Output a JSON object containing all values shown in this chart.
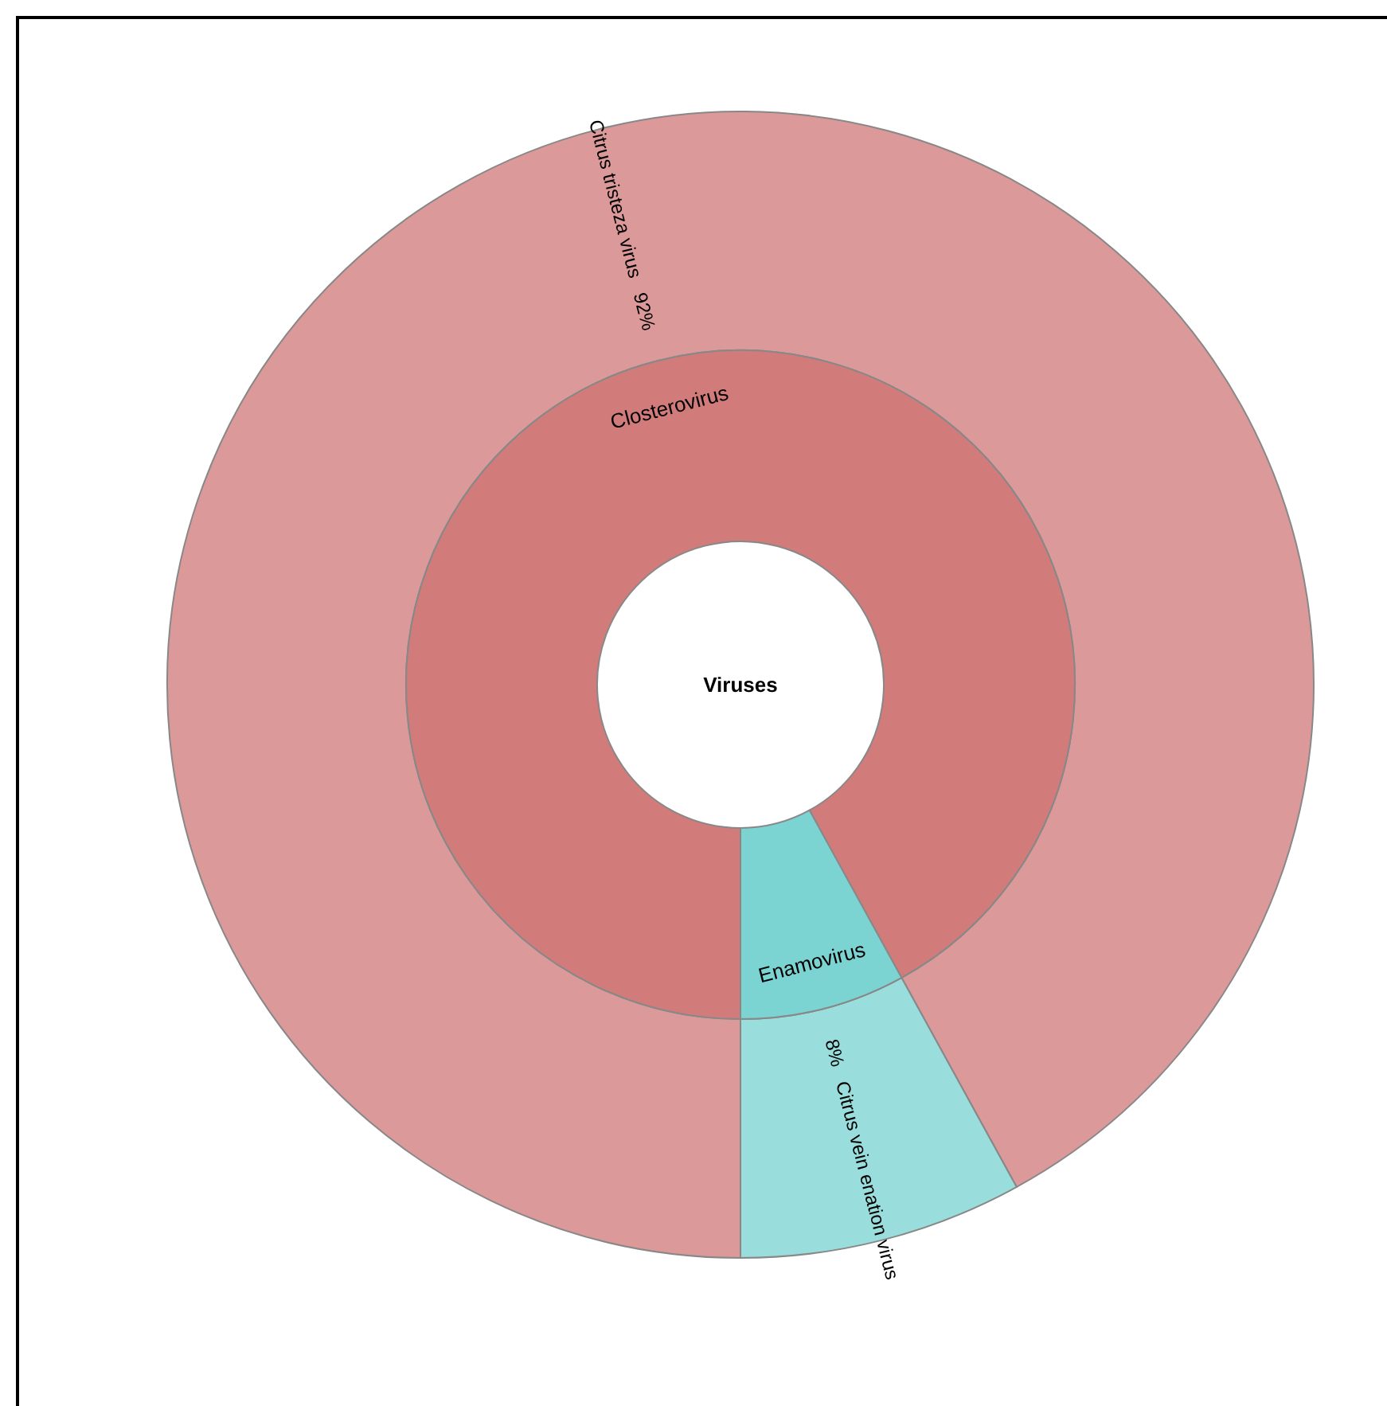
{
  "chart_data": [
    {
      "type": "donut",
      "categories": [
        "Citrus tristeza virus",
        "Citrus vein enation virus"
      ],
      "values": [
        92,
        8
      ],
      "colors": [
        "#dc9999",
        "#99dddd"
      ],
      "value_labels": [
        "92%",
        "8%"
      ]
    },
    {
      "type": "donut",
      "title": "Viruses",
      "categories": [
        "Closterovirus",
        "Enamovirus"
      ],
      "values": [
        92,
        8
      ],
      "colors": [
        "#d27b7b",
        "#7bd4d2"
      ]
    }
  ]
}
